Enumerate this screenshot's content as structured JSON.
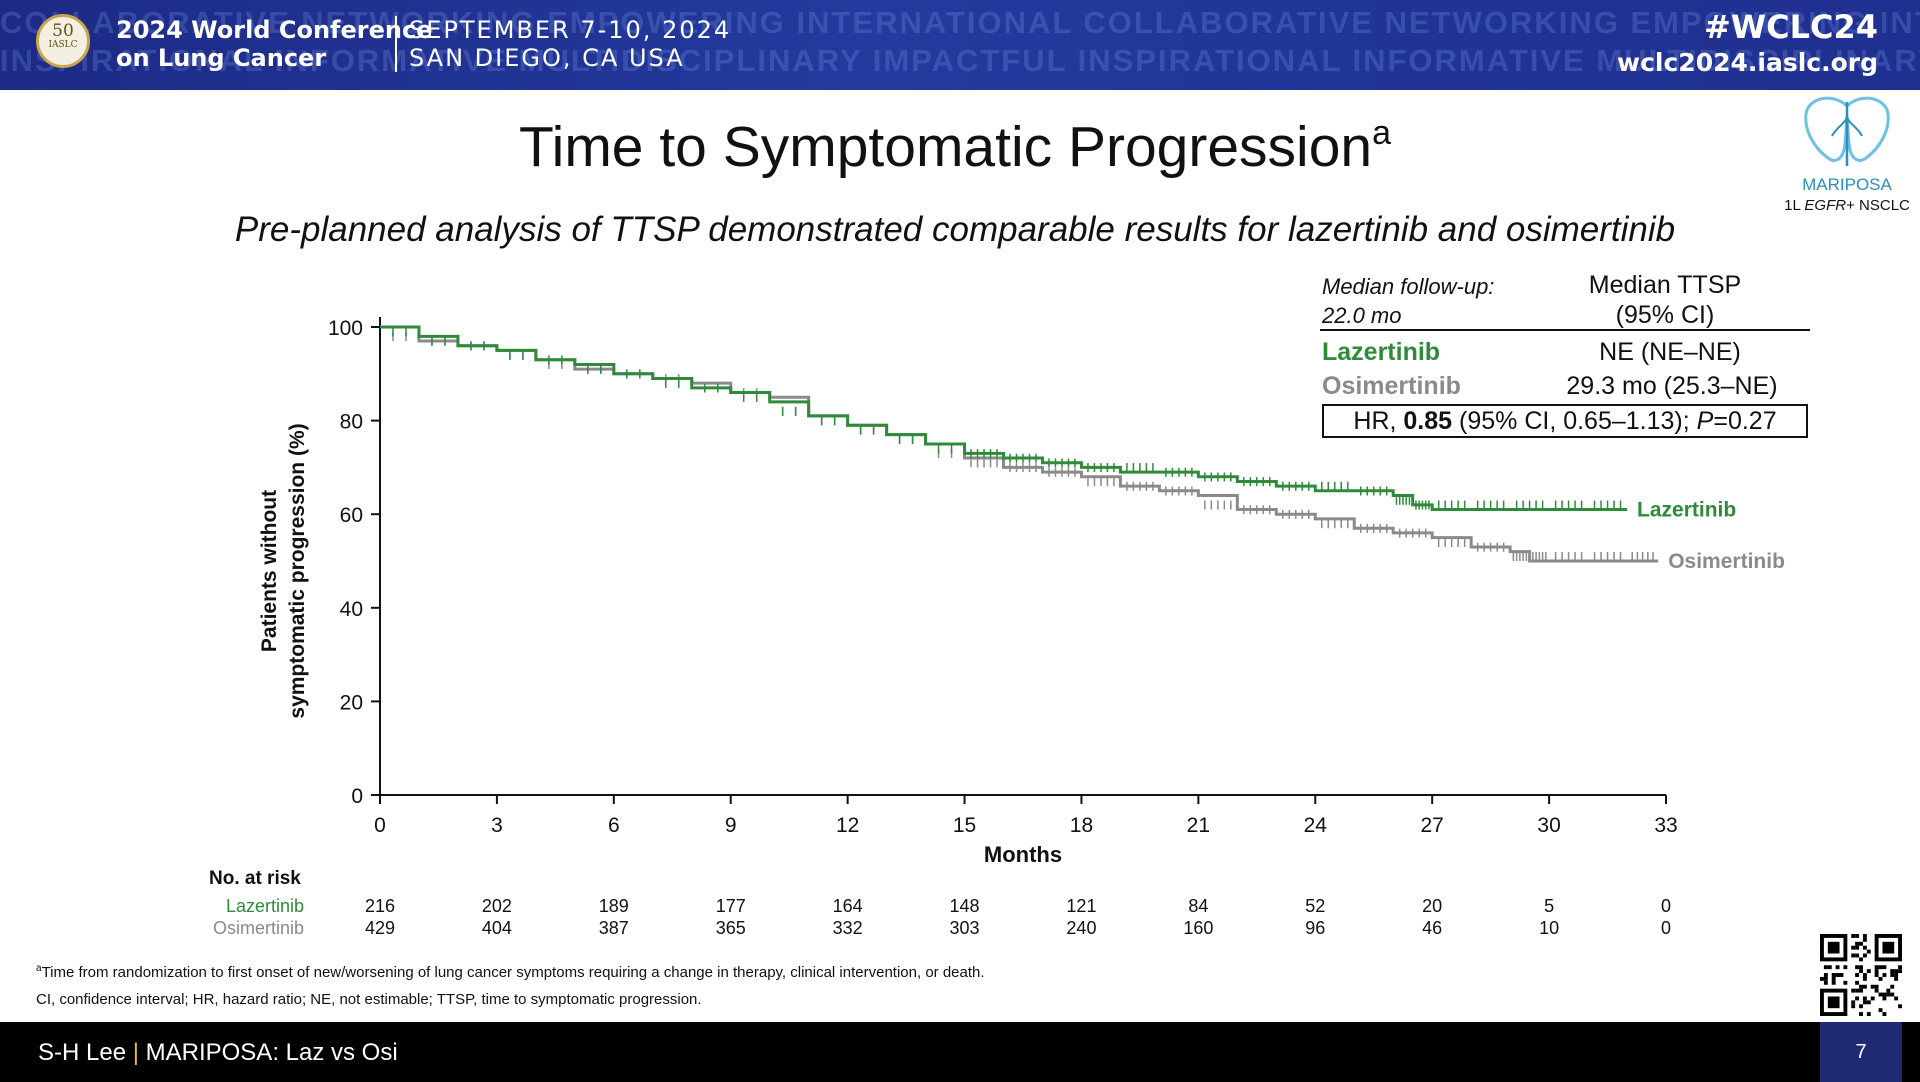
{
  "header": {
    "logo_line1": "50",
    "logo_line2": "IASLC",
    "background_words": "COLLABORATIVE NETWORKING EMPOWERING INTERNATIONAL COLLABORATIVE NETWORKING EMPOWERING INTE",
    "background_words_2": "INSPIRATIONAL INFORMATIVE MULTIDISCIPLINARY IMPACTFUL INSPIRATIONAL INFORMATIVE MULTIDISCIPLINARY",
    "conference_line1": "2024 World Conference",
    "conference_line2": "on Lung Cancer",
    "dates_line1": "SEPTEMBER 7-10, 2024",
    "dates_line2": "SAN DIEGO, CA USA",
    "hashtag": "#WCLC24",
    "website": "wclc2024.iaslc.org",
    "colors": {
      "banner": "#1f2f8f",
      "text": "#ffffff"
    }
  },
  "slide": {
    "title": "Time to Symptomatic Progression",
    "title_sup": "a",
    "subtitle": "Pre-planned analysis of TTSP demonstrated comparable results for lazertinib and osimertinib",
    "brand_name": "MARIPOSA",
    "brand_desc_pre": "1L ",
    "brand_desc_em": "EGFR",
    "brand_desc_post": "+ NSCLC",
    "brand_icon": "butterfly-lungs-icon"
  },
  "summary": {
    "followup_line1": "Median follow-up:",
    "followup_line2": "22.0 mo",
    "median_header_line1": "Median TTSP",
    "median_header_line2": "(95% CI)",
    "row1_label": "Lazertinib",
    "row1_value": "NE (NE–NE)",
    "row2_label": "Osimertinib",
    "row2_value": "29.3 mo (25.3–NE)",
    "hr_prefix": "HR, ",
    "hr_value": "0.85",
    "hr_ci": " (95% CI, 0.65–1.13); ",
    "hr_p_label": "P",
    "hr_p_value": "=0.27"
  },
  "chart_data": {
    "type": "line",
    "subtype": "kaplan-meier",
    "ylabel_line1": "Patients without",
    "ylabel_line2": "symptomatic progression (%)",
    "xlabel": "Months",
    "xlim": [
      0,
      33
    ],
    "ylim": [
      0,
      100
    ],
    "xticks": [
      0,
      3,
      6,
      9,
      12,
      15,
      18,
      21,
      24,
      27,
      30,
      33
    ],
    "yticks": [
      0,
      20,
      40,
      60,
      80,
      100
    ],
    "grid": false,
    "series": [
      {
        "name": "Lazertinib",
        "color": "#2f8a3a",
        "x": [
          0,
          1,
          2,
          3,
          4,
          5,
          6,
          7,
          8,
          9,
          10,
          11,
          12,
          13,
          14,
          15,
          16,
          17,
          18,
          19,
          20,
          21,
          22,
          23,
          24,
          25,
          26,
          26.5,
          27,
          28,
          29,
          30,
          31,
          32
        ],
        "y": [
          100,
          98,
          96,
          95,
          93,
          92,
          90,
          89,
          87,
          86,
          84,
          81,
          79,
          77,
          75,
          73,
          72,
          71,
          70,
          69,
          69,
          68,
          67,
          66,
          65,
          65,
          64,
          62,
          61,
          61,
          61,
          61,
          61,
          61
        ]
      },
      {
        "name": "Osimertinib",
        "color": "#8a8a8a",
        "x": [
          0,
          1,
          2,
          3,
          4,
          5,
          6,
          7,
          8,
          9,
          10,
          11,
          12,
          13,
          14,
          15,
          16,
          17,
          18,
          19,
          20,
          21,
          22,
          23,
          24,
          25,
          26,
          27,
          28,
          29,
          29.5,
          30,
          31,
          32,
          32.8
        ],
        "y": [
          100,
          97,
          96,
          95,
          93,
          91,
          90,
          89,
          88,
          86,
          85,
          81,
          79,
          77,
          75,
          72,
          70,
          69,
          68,
          66,
          65,
          64,
          61,
          60,
          59,
          57,
          56,
          55,
          53,
          52,
          50,
          50,
          50,
          50,
          50
        ]
      }
    ],
    "end_labels": [
      "Lazertinib",
      "Osimertinib"
    ],
    "risk_table": {
      "title": "No. at risk",
      "times": [
        0,
        3,
        6,
        9,
        12,
        15,
        18,
        21,
        24,
        27,
        30,
        33
      ],
      "rows": [
        {
          "name": "Lazertinib",
          "color": "#2f8a3a",
          "values": [
            "216",
            "202",
            "189",
            "177",
            "164",
            "148",
            "121",
            "84",
            "52",
            "20",
            "5",
            "0"
          ]
        },
        {
          "name": "Osimertinib",
          "color": "#8a8a8a",
          "values": [
            "429",
            "404",
            "387",
            "365",
            "332",
            "303",
            "240",
            "160",
            "96",
            "46",
            "10",
            "0"
          ]
        }
      ]
    }
  },
  "footnotes": {
    "fn1_sup": "a",
    "fn1": "Time from randomization to first onset of new/worsening of lung cancer symptoms requiring a change in therapy, clinical intervention, or death.",
    "fn2": "CI, confidence interval; HR, hazard ratio; NE, not estimable; TTSP, time to symptomatic progression."
  },
  "footer": {
    "speaker": "S-H Lee",
    "separator": "|",
    "talk": "MARIPOSA: Laz vs Osi",
    "page": "7",
    "qr_icon": "qr-code-icon"
  }
}
